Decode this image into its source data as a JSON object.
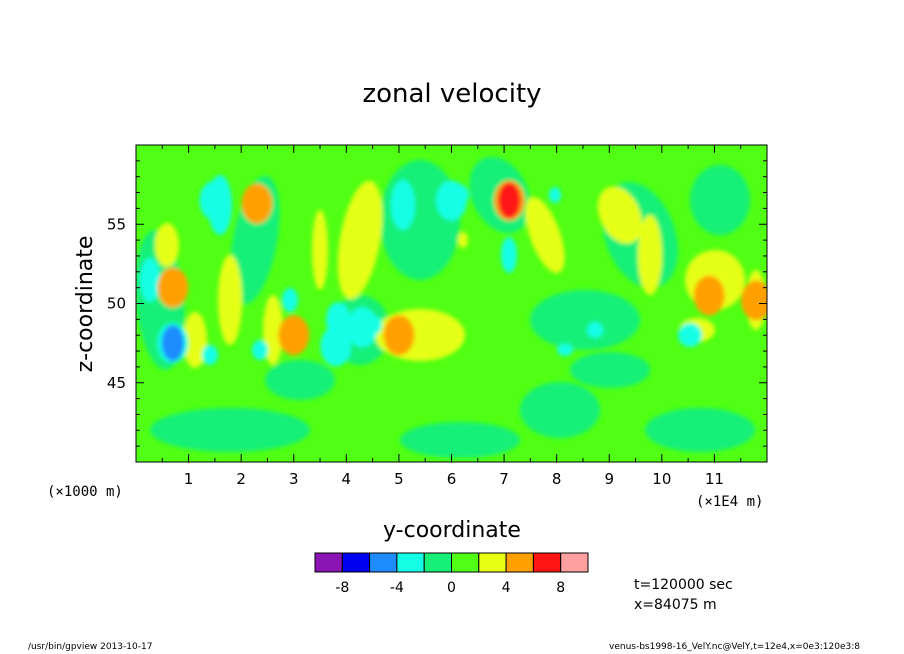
{
  "chart_data": {
    "type": "heatmap",
    "title": "zonal velocity",
    "xlabel": "y-coordinate",
    "ylabel": "z-coordinate",
    "x_scale_note": "(×1E4 m)",
    "y_scale_note": "(×1000 m)",
    "xlim": [
      0,
      12
    ],
    "ylim": [
      40,
      60
    ],
    "x_ticks": [
      1,
      2,
      3,
      4,
      5,
      6,
      7,
      8,
      9,
      10,
      11
    ],
    "y_ticks": [
      45,
      50,
      55
    ],
    "colorbar": {
      "levels": [
        -10,
        -8,
        -6,
        -4,
        -2,
        0,
        2,
        4,
        6,
        8,
        10
      ],
      "colors": [
        "#8a14b4",
        "#0000f0",
        "#1e8cff",
        "#14ffe6",
        "#14f078",
        "#50ff14",
        "#e6ff14",
        "#ffa000",
        "#ff1414",
        "#ffa0a0"
      ],
      "tick_labels": [
        "-8",
        "-4",
        "0",
        "4",
        "8"
      ],
      "tick_values": [
        -8,
        -4,
        0,
        4,
        8
      ]
    },
    "features": [
      {
        "y": 0.7,
        "z": 51,
        "value": 5
      },
      {
        "y": 0.7,
        "z": 47.5,
        "value": -6
      },
      {
        "y": 1.5,
        "z": 56.5,
        "value": -5
      },
      {
        "y": 2.3,
        "z": 56.3,
        "value": 5
      },
      {
        "y": 3.0,
        "z": 48,
        "value": 4
      },
      {
        "y": 3.8,
        "z": 47.3,
        "value": -5
      },
      {
        "y": 4.3,
        "z": 48.5,
        "value": -5
      },
      {
        "y": 5.0,
        "z": 48,
        "value": 4
      },
      {
        "y": 6.0,
        "z": 56.5,
        "value": -5
      },
      {
        "y": 7.1,
        "z": 56.5,
        "value": 7
      },
      {
        "y": 10.9,
        "z": 50.5,
        "value": 5
      },
      {
        "y": 11.8,
        "z": 50.2,
        "value": 5
      }
    ]
  },
  "info": {
    "time": "t=120000 sec",
    "position": "x=84075 m"
  },
  "footer": {
    "left": "/usr/bin/gpview  2013-10-17",
    "right": "venus-bs1998-16_VelY.nc@VelY,t=12e4,x=0e3:120e3:8"
  }
}
